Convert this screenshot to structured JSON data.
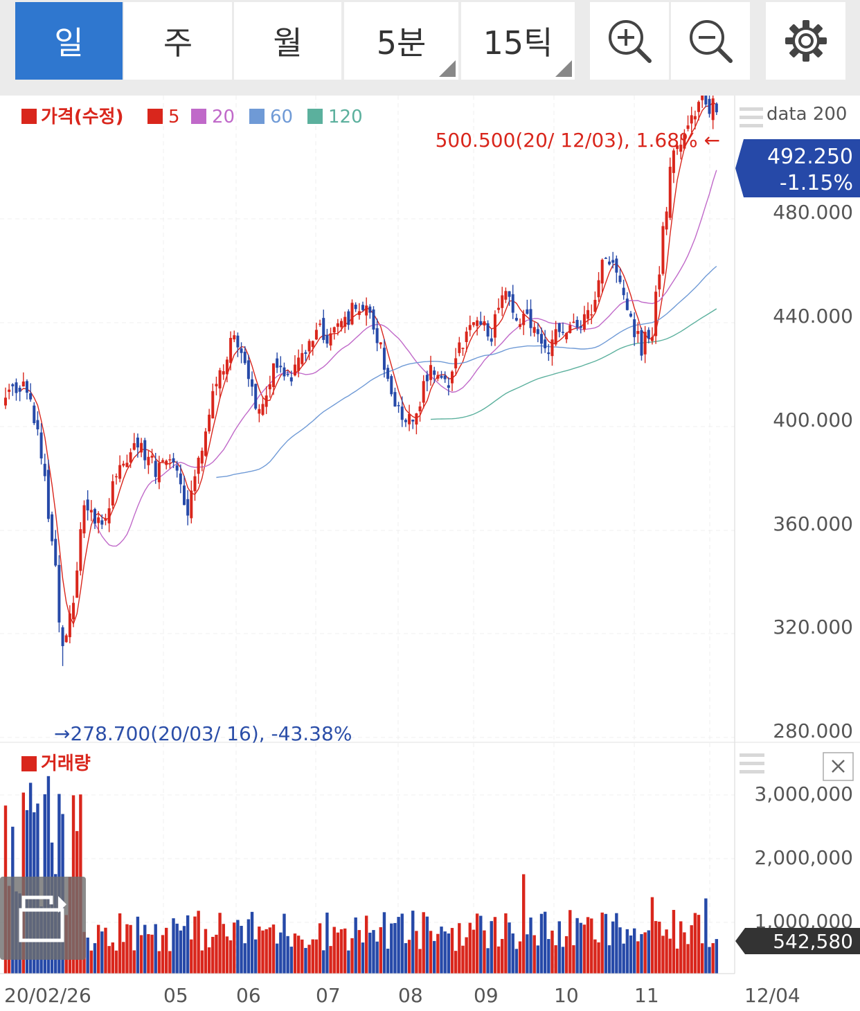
{
  "toolbar": {
    "periods": [
      {
        "label": "일",
        "active": true
      },
      {
        "label": "주",
        "active": false
      },
      {
        "label": "월",
        "active": false
      },
      {
        "label": "5분",
        "active": false,
        "has_menu": true
      },
      {
        "label": "15틱",
        "active": false,
        "has_menu": true
      }
    ],
    "icons": [
      "zoom-in-icon",
      "zoom-out-icon",
      "gear-icon"
    ]
  },
  "chart_data": {
    "type": "candlestick",
    "legend": [
      {
        "label": "가격(수정)",
        "color": "#d9261c"
      },
      {
        "label": "5",
        "color": "#d9261c"
      },
      {
        "label": "20",
        "color": "#c069c9"
      },
      {
        "label": "60",
        "color": "#6f9ad6"
      },
      {
        "label": "120",
        "color": "#5bb09d"
      }
    ],
    "data_count_label": "data 200",
    "price_axis": {
      "ticks": [
        "480.000",
        "440.000",
        "400.000",
        "360.000",
        "320.000",
        "280.000"
      ],
      "range": [
        268,
        508
      ]
    },
    "volume_axis": {
      "ticks": [
        "3,000,000",
        "2,000,000",
        "1,000,000"
      ],
      "range": [
        0,
        3150000
      ]
    },
    "x_labels": [
      "20/02/26",
      "05",
      "06",
      "07",
      "08",
      "09",
      "10",
      "11",
      "12/04"
    ],
    "price_anchors": [
      [
        0,
        385
      ],
      [
        6,
        388
      ],
      [
        10,
        360
      ],
      [
        14,
        315
      ],
      [
        16,
        283
      ],
      [
        19,
        305
      ],
      [
        22,
        340
      ],
      [
        27,
        335
      ],
      [
        32,
        355
      ],
      [
        37,
        366
      ],
      [
        42,
        355
      ],
      [
        47,
        358
      ],
      [
        51,
        340
      ],
      [
        56,
        372
      ],
      [
        60,
        390
      ],
      [
        64,
        407
      ],
      [
        68,
        388
      ],
      [
        71,
        375
      ],
      [
        75,
        393
      ],
      [
        79,
        388
      ],
      [
        83,
        398
      ],
      [
        87,
        408
      ],
      [
        91,
        405
      ],
      [
        95,
        413
      ],
      [
        100,
        418
      ],
      [
        104,
        405
      ],
      [
        108,
        385
      ],
      [
        111,
        373
      ],
      [
        115,
        378
      ],
      [
        118,
        392
      ],
      [
        121,
        390
      ],
      [
        124,
        387
      ],
      [
        127,
        403
      ],
      [
        131,
        410
      ],
      [
        136,
        407
      ],
      [
        140,
        427
      ],
      [
        143,
        413
      ],
      [
        147,
        410
      ],
      [
        151,
        400
      ],
      [
        154,
        405
      ],
      [
        158,
        412
      ],
      [
        161,
        410
      ],
      [
        164,
        415
      ],
      [
        167,
        438
      ],
      [
        171,
        432
      ],
      [
        175,
        410
      ],
      [
        178,
        402
      ],
      [
        181,
        407
      ],
      [
        184,
        445
      ],
      [
        186,
        470
      ],
      [
        189,
        482
      ],
      [
        193,
        490
      ],
      [
        195,
        496
      ],
      [
        197,
        495
      ],
      [
        199,
        492.25
      ]
    ],
    "ma_start": {
      "ma5": 4,
      "ma20": 25,
      "ma60": 59,
      "ma120": 119
    },
    "high": {
      "label": "500.500(20/ 12/03),  1.68% ←",
      "value": 500.5,
      "index": 197
    },
    "low": {
      "label": "→278.700(20/03/ 16), -43.38%",
      "value": 278.7,
      "index": 16
    },
    "last_price": {
      "value": "492.250",
      "change": "-1.15%"
    },
    "volume_legend": "거래량",
    "last_volume": "542,580",
    "close_icon": "close-icon",
    "overlay_icon": "screen-rotate-icon"
  }
}
